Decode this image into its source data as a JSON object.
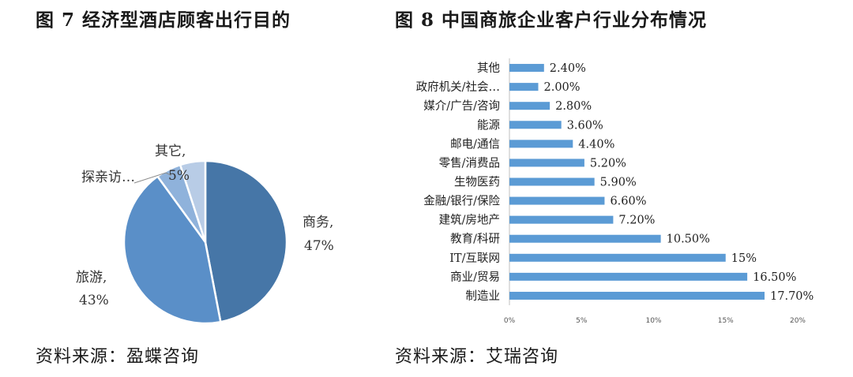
{
  "left_title": "图 7 经济型酒店顾客出行目的",
  "right_title": "图 8 中国商旅企业客户行业分布情况",
  "left_source": "资料来源：盈蝶咨询",
  "right_source": "资料来源：艾瑞咨询",
  "chart_data": [
    {
      "type": "pie",
      "title": "图 7 经济型酒店顾客出行目的",
      "slices": [
        {
          "name": "商务,",
          "pct_label": "47%",
          "value": 47,
          "color": "#4676a7"
        },
        {
          "name": "旅游,",
          "pct_label": "43%",
          "value": 43,
          "color": "#5a8fc8"
        },
        {
          "name": "探亲访…",
          "pct_label": "",
          "value": 5,
          "color": "#8fb2db"
        },
        {
          "name": "其它,",
          "pct_label": "5%",
          "value": 5,
          "color": "#b8cce6"
        }
      ]
    },
    {
      "type": "bar",
      "orientation": "horizontal",
      "title": "图 8 中国商旅企业客户行业分布情况",
      "bar_color": "#5b9bd5",
      "xlim": [
        0,
        20
      ],
      "xticks": [
        "0%",
        "5%",
        "10%",
        "15%",
        "20%"
      ],
      "categories": [
        "其他",
        "政府机关/社会…",
        "媒介/广告/咨询",
        "能源",
        "邮电/通信",
        "零售/消费品",
        "生物医药",
        "金融/银行/保险",
        "建筑/房地产",
        "教育/科研",
        "IT/互联网",
        "商业/贸易",
        "制造业"
      ],
      "values": [
        2.4,
        2.0,
        2.8,
        3.6,
        4.4,
        5.2,
        5.9,
        6.6,
        7.2,
        10.5,
        15,
        16.5,
        17.7
      ],
      "value_labels": [
        "2.40%",
        "2.00%",
        "2.80%",
        "3.60%",
        "4.40%",
        "5.20%",
        "5.90%",
        "6.60%",
        "7.20%",
        "10.50%",
        "15%",
        "16.50%",
        "17.70%"
      ]
    }
  ]
}
